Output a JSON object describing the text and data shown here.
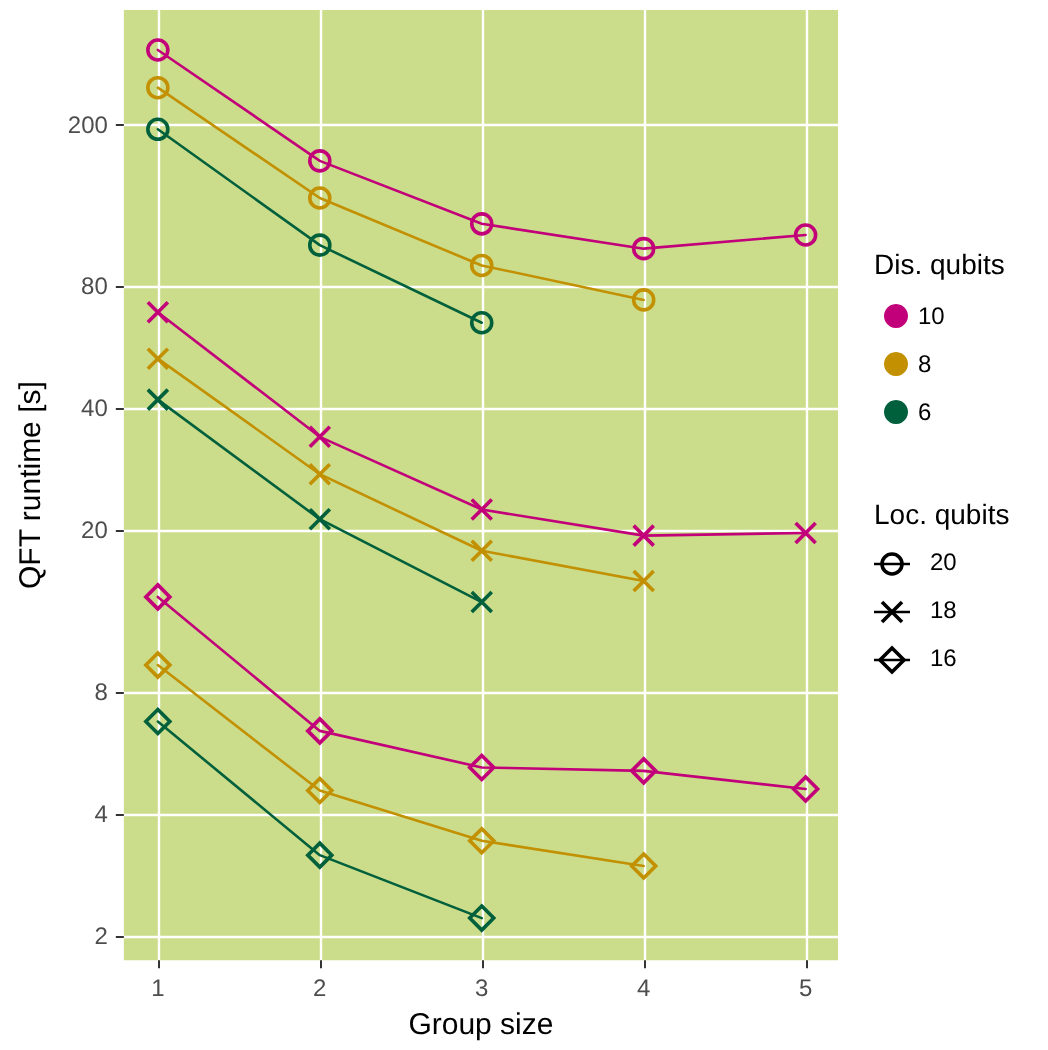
{
  "chart_data": {
    "type": "line",
    "xlabel": "Group size",
    "ylabel": "QFT runtime [s]",
    "legend_title": [
      "Dis. qubits",
      "Loc. qubits"
    ],
    "annotations": [
      "20",
      "18",
      "16"
    ],
    "x": [
      1,
      2,
      3,
      4,
      5
    ],
    "xlim": [
      0.79,
      5.2
    ],
    "xticks": [
      1,
      2,
      3,
      4,
      5
    ],
    "ylim": [
      1.74,
      384
    ],
    "yticks": [
      2,
      4,
      8,
      20,
      40,
      80,
      200
    ],
    "log": "y",
    "grid": true,
    "legend": "right",
    "line_style": "solid",
    "series": [
      {
        "name": "10",
        "color": "#c2007a",
        "marker": "circle",
        "values": [
          306,
          163,
          114,
          99,
          107
        ]
      },
      {
        "name": "8",
        "color": "#c29000",
        "marker": "circle",
        "x": [
          1,
          2,
          3,
          4
        ],
        "values": [
          247,
          132,
          90,
          74
        ]
      },
      {
        "name": "6",
        "color": "#00603c",
        "marker": "circle",
        "x": [
          1,
          2,
          3
        ],
        "values": [
          195,
          101,
          65
        ]
      },
      {
        "color": "#c2007a",
        "marker": "cross",
        "values": [
          69,
          34,
          22.5,
          19.4,
          19.7
        ]
      },
      {
        "color": "#c29000",
        "marker": "cross",
        "x": [
          1,
          2,
          3,
          4
        ],
        "values": [
          53,
          27.5,
          17.8,
          15
        ]
      },
      {
        "color": "#00603c",
        "marker": "cross",
        "x": [
          1,
          2,
          3
        ],
        "values": [
          42,
          21.3,
          13.3
        ]
      },
      {
        "color": "#c2007a",
        "marker": "diamond",
        "values": [
          13.7,
          6.4,
          5.2,
          5.1,
          4.6
        ]
      },
      {
        "color": "#c29000",
        "marker": "diamond",
        "x": [
          1,
          2,
          3,
          4
        ],
        "values": [
          9.3,
          4.56,
          3.43,
          2.97
        ]
      },
      {
        "color": "#00603c",
        "marker": "diamond",
        "x": [
          1,
          2,
          3
        ],
        "values": [
          6.75,
          3.16,
          2.21
        ]
      }
    ]
  }
}
